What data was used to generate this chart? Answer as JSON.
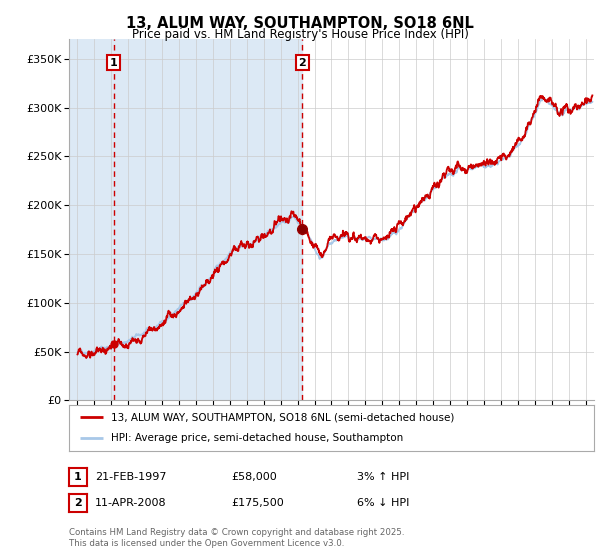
{
  "title": "13, ALUM WAY, SOUTHAMPTON, SO18 6NL",
  "subtitle": "Price paid vs. HM Land Registry's House Price Index (HPI)",
  "hpi_color": "#a8c8e8",
  "price_color": "#cc0000",
  "vline_color": "#cc0000",
  "background_color": "#dce9f5",
  "plot_bg": "#ffffff",
  "grid_color": "#cccccc",
  "legend_label_price": "13, ALUM WAY, SOUTHAMPTON, SO18 6NL (semi-detached house)",
  "legend_label_hpi": "HPI: Average price, semi-detached house, Southampton",
  "annotation1_date": "21-FEB-1997",
  "annotation1_price": "£58,000",
  "annotation1_hpi": "3% ↑ HPI",
  "annotation2_date": "11-APR-2008",
  "annotation2_price": "£175,500",
  "annotation2_hpi": "6% ↓ HPI",
  "footer": "Contains HM Land Registry data © Crown copyright and database right 2025.\nThis data is licensed under the Open Government Licence v3.0.",
  "vline1_x": 1997.13,
  "vline2_x": 2008.27,
  "purchase1_y": 58000,
  "purchase2_y": 175500,
  "ylim": [
    0,
    370000
  ],
  "xlim": [
    1994.5,
    2025.5
  ]
}
